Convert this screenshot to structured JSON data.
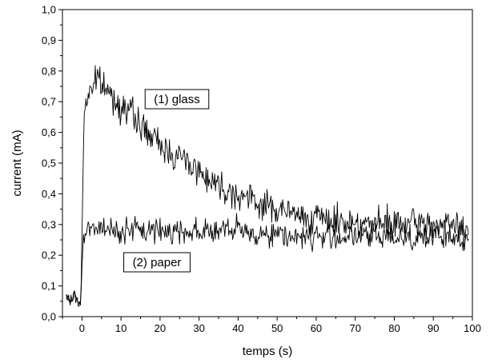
{
  "chart_data": {
    "type": "line",
    "xlabel": "temps (s)",
    "ylabel": "current (mA)",
    "xlim": [
      -5,
      100
    ],
    "ylim": [
      0,
      1.0
    ],
    "x_ticks": [
      "0",
      "10",
      "20",
      "30",
      "40",
      "50",
      "60",
      "70",
      "80",
      "90",
      "100"
    ],
    "y_ticks": [
      "0,0",
      "0,1",
      "0,2",
      "0,3",
      "0,4",
      "0,5",
      "0,6",
      "0,7",
      "0,8",
      "0,9",
      "1,0"
    ],
    "grid": false,
    "legend": "none",
    "annotations": [
      {
        "text": "(1) glass",
        "series": 1
      },
      {
        "text": "(2) paper",
        "series": 2
      }
    ],
    "series": [
      {
        "x": [
          -4,
          -3,
          -2,
          -1,
          -0.3,
          0.1,
          0.5,
          1,
          2,
          3,
          4,
          5,
          6,
          7,
          8,
          10,
          12,
          14,
          16,
          18,
          20,
          22,
          25,
          28,
          30,
          33,
          36,
          40,
          45,
          50,
          55,
          60,
          65,
          70,
          75,
          80,
          85,
          90,
          95,
          99
        ],
        "y": [
          0.06,
          0.05,
          0.07,
          0.05,
          0.04,
          0.35,
          0.62,
          0.7,
          0.74,
          0.76,
          0.77,
          0.76,
          0.74,
          0.73,
          0.71,
          0.69,
          0.67,
          0.64,
          0.61,
          0.58,
          0.56,
          0.54,
          0.52,
          0.5,
          0.47,
          0.45,
          0.42,
          0.4,
          0.37,
          0.35,
          0.33,
          0.32,
          0.31,
          0.31,
          0.3,
          0.3,
          0.3,
          0.3,
          0.3,
          0.27
        ],
        "noise": 0.035
      },
      {
        "x": [
          -4,
          -3,
          -2,
          -1,
          -0.3,
          0.1,
          0.5,
          1,
          2,
          3,
          5,
          10,
          15,
          20,
          25,
          30,
          35,
          40,
          45,
          50,
          55,
          60,
          65,
          70,
          75,
          80,
          85,
          90,
          95,
          99
        ],
        "y": [
          0.06,
          0.05,
          0.07,
          0.05,
          0.04,
          0.2,
          0.29,
          0.3,
          0.29,
          0.29,
          0.28,
          0.28,
          0.28,
          0.28,
          0.28,
          0.28,
          0.28,
          0.28,
          0.27,
          0.27,
          0.26,
          0.26,
          0.26,
          0.26,
          0.26,
          0.26,
          0.26,
          0.26,
          0.26,
          0.25
        ],
        "noise": 0.03
      }
    ]
  }
}
